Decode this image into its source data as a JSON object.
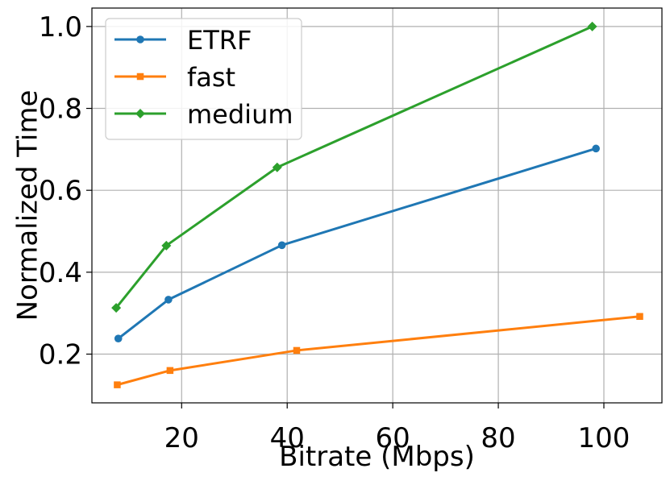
{
  "chart_data": {
    "type": "line",
    "title": "",
    "xlabel": "Bitrate (Mbps)",
    "ylabel": "Normalized Time",
    "xlim": [
      3,
      111
    ],
    "ylim": [
      0.081,
      1.045
    ],
    "x_ticks": [
      20,
      40,
      60,
      80,
      100
    ],
    "x_tick_labels": [
      "20",
      "40",
      "60",
      "80",
      "100"
    ],
    "y_ticks": [
      0.2,
      0.4,
      0.6,
      0.8,
      1.0
    ],
    "y_tick_labels": [
      "0.2",
      "0.4",
      "0.6",
      "0.8",
      "1.0"
    ],
    "grid": true,
    "legend_position": "upper-left",
    "series": [
      {
        "name": "ETRF",
        "color": "#1f77b4",
        "marker": "circle",
        "x": [
          8.0,
          17.5,
          39.0,
          98.5
        ],
        "y": [
          0.238,
          0.333,
          0.466,
          0.702
        ]
      },
      {
        "name": "fast",
        "color": "#ff7f0e",
        "marker": "square",
        "x": [
          7.8,
          17.8,
          41.8,
          106.8
        ],
        "y": [
          0.125,
          0.16,
          0.209,
          0.292
        ]
      },
      {
        "name": "medium",
        "color": "#2ca02c",
        "marker": "diamond",
        "x": [
          7.6,
          17.1,
          38.1,
          97.8
        ],
        "y": [
          0.313,
          0.465,
          0.656,
          1.0
        ]
      }
    ]
  }
}
